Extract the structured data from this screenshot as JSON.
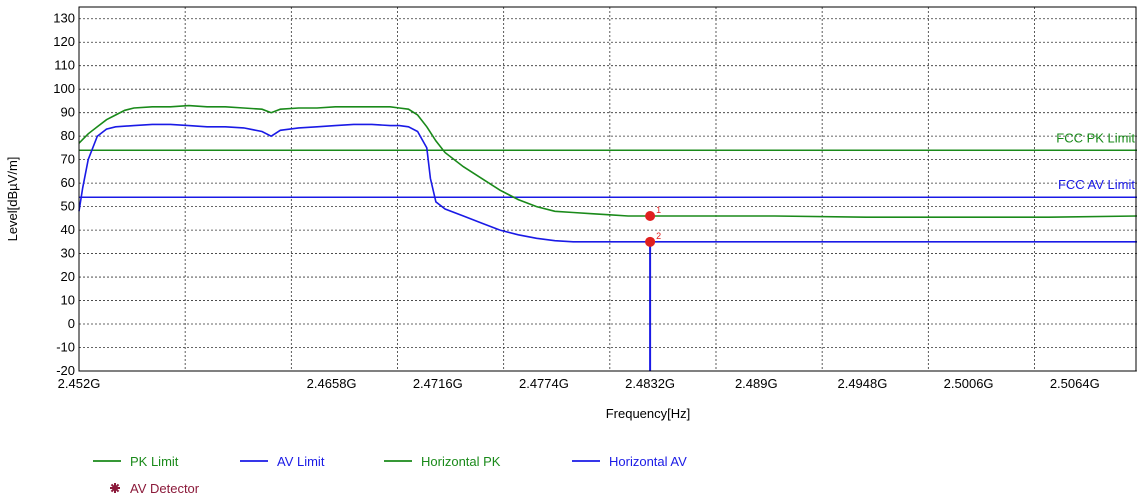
{
  "chart_data": {
    "type": "line",
    "title": "",
    "xlabel": "Frequency[Hz]",
    "ylabel": "Level[dBµV/m]",
    "xlim": [
      2.452,
      2.5098
    ],
    "ylim": [
      -20,
      135
    ],
    "x_ticks": [
      {
        "value": 2.452,
        "label": "2.452G"
      },
      {
        "value": 2.4658,
        "label": "2.4658G"
      },
      {
        "value": 2.4716,
        "label": "2.4716G"
      },
      {
        "value": 2.4774,
        "label": "2.4774G"
      },
      {
        "value": 2.4832,
        "label": "2.4832G"
      },
      {
        "value": 2.489,
        "label": "2.489G"
      },
      {
        "value": 2.4948,
        "label": "2.4948G"
      },
      {
        "value": 2.5006,
        "label": "2.5006G"
      },
      {
        "value": 2.5064,
        "label": "2.5064G"
      }
    ],
    "x_grid": [
      2.452,
      2.4578,
      2.4636,
      2.4694,
      2.4752,
      2.481,
      2.4868,
      2.4926,
      2.4984,
      2.5042
    ],
    "y_ticks": [
      -20,
      -10,
      0,
      10,
      20,
      30,
      40,
      50,
      60,
      70,
      80,
      90,
      100,
      110,
      120,
      130
    ],
    "grid": true,
    "limit_lines": [
      {
        "name": "FCC PK Limit",
        "label": "FCC PK Limit",
        "value": 74,
        "color": "#1a8a1a"
      },
      {
        "name": "FCC AV Limit",
        "label": "FCC AV Limit",
        "value": 54,
        "color": "#1a1ae6"
      }
    ],
    "series": [
      {
        "name": "Horizontal PK",
        "color": "#1a8a1a",
        "x": [
          2.452,
          2.4525,
          2.453,
          2.4535,
          2.454,
          2.4545,
          2.455,
          2.456,
          2.457,
          2.458,
          2.459,
          2.46,
          2.461,
          2.462,
          2.4625,
          2.463,
          2.464,
          2.465,
          2.466,
          2.467,
          2.468,
          2.469,
          2.4695,
          2.47,
          2.4705,
          2.471,
          2.4715,
          2.472,
          2.473,
          2.474,
          2.475,
          2.476,
          2.477,
          2.478,
          2.479,
          2.48,
          2.481,
          2.482,
          2.4832,
          2.485,
          2.49,
          2.495,
          2.5,
          2.505,
          2.5098
        ],
        "y": [
          77,
          81,
          84,
          87,
          89,
          91,
          92,
          92.5,
          92.5,
          93,
          92.5,
          92.5,
          92,
          91.5,
          90,
          91.5,
          92,
          92,
          92.5,
          92.5,
          92.5,
          92.5,
          92,
          91.5,
          89,
          84,
          78,
          73,
          67,
          62,
          57,
          53,
          50,
          48,
          47.5,
          47,
          46.5,
          46,
          46,
          46,
          46,
          45.5,
          45.5,
          45.5,
          46
        ]
      },
      {
        "name": "Horizontal AV",
        "color": "#1a1ae6",
        "x": [
          2.452,
          2.4522,
          2.4525,
          2.453,
          2.4535,
          2.454,
          2.455,
          2.456,
          2.457,
          2.458,
          2.459,
          2.46,
          2.461,
          2.462,
          2.4625,
          2.463,
          2.464,
          2.465,
          2.466,
          2.467,
          2.468,
          2.469,
          2.4695,
          2.47,
          2.4705,
          2.471,
          2.4712,
          2.4715,
          2.472,
          2.473,
          2.474,
          2.475,
          2.476,
          2.477,
          2.478,
          2.479,
          2.48,
          2.481,
          2.4832,
          2.485,
          2.49,
          2.495,
          2.5,
          2.505,
          2.5098
        ],
        "y": [
          48,
          58,
          70,
          80,
          83,
          84,
          84.5,
          85,
          85,
          84.5,
          84,
          84,
          83.5,
          82,
          80,
          82.5,
          83.5,
          84,
          84.5,
          85,
          85,
          84.5,
          84.5,
          84,
          82,
          75,
          62,
          52,
          49,
          46,
          43,
          40,
          38,
          36.5,
          35.5,
          35,
          35,
          35,
          35,
          35,
          35,
          35,
          35,
          35,
          35
        ]
      }
    ],
    "markers": [
      {
        "label": "1",
        "x": 2.4832,
        "y": 46,
        "color": "#e02020"
      },
      {
        "label": "2",
        "x": 2.4832,
        "y": 35,
        "color": "#e02020"
      }
    ],
    "av_detector_line": {
      "x": 2.4832,
      "from": 35,
      "to": -20,
      "color": "#1a1ae6"
    },
    "legend": {
      "placement": "bottom-left",
      "items": [
        {
          "label": "PK Limit",
          "color": "#1a8a1a",
          "symbol": "line"
        },
        {
          "label": "AV Limit",
          "color": "#1a1ae6",
          "symbol": "line"
        },
        {
          "label": "Horizontal PK",
          "color": "#1a8a1a",
          "symbol": "line"
        },
        {
          "label": "Horizontal AV",
          "color": "#1a1ae6",
          "symbol": "line"
        },
        {
          "label": "AV Detector",
          "color": "#8b1a3a",
          "symbol": "star"
        }
      ]
    }
  }
}
